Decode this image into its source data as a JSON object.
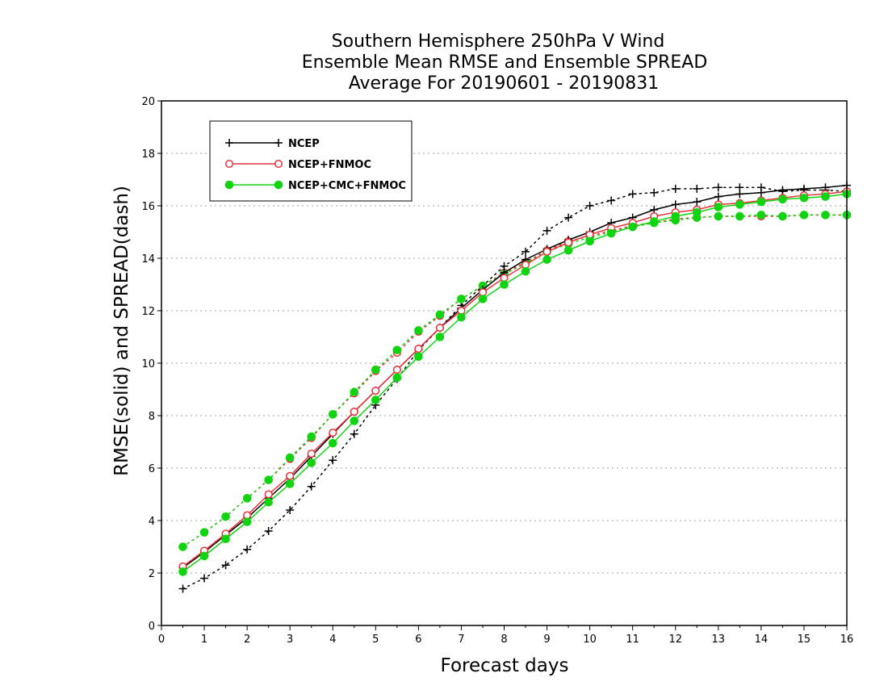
{
  "chart_data": {
    "type": "line",
    "title": [
      "Southern Hemisphere 250hPa V Wind",
      "Ensemble Mean RMSE and Ensemble SPREAD",
      "Average For 20190601 - 20190831"
    ],
    "xlabel": "Forecast days",
    "ylabel": "RMSE(solid) and SPREAD(dash)",
    "xlim": [
      0,
      16
    ],
    "ylim": [
      0,
      20
    ],
    "xticks": [
      0,
      1,
      2,
      3,
      4,
      5,
      6,
      7,
      8,
      9,
      10,
      11,
      12,
      13,
      14,
      15,
      16
    ],
    "yticks": [
      0,
      2,
      4,
      6,
      8,
      10,
      12,
      14,
      16,
      18,
      20
    ],
    "grid": true,
    "legend_position": "top-left",
    "x": [
      0.5,
      1,
      1.5,
      2,
      2.5,
      3,
      3.5,
      4,
      4.5,
      5,
      5.5,
      6,
      6.5,
      7,
      7.5,
      8,
      8.5,
      9,
      9.5,
      10,
      10.5,
      11,
      11.5,
      12,
      12.5,
      13,
      13.5,
      14,
      14.5,
      15,
      15.5,
      16
    ],
    "series": [
      {
        "name": "NCEP",
        "color": "#000000",
        "marker": "plus",
        "rmse": [
          2.2,
          2.8,
          3.45,
          4.1,
          4.85,
          5.6,
          6.45,
          7.3,
          8.15,
          8.95,
          9.75,
          10.55,
          11.35,
          12.1,
          12.8,
          13.45,
          13.95,
          14.35,
          14.7,
          15.0,
          15.35,
          15.55,
          15.85,
          16.05,
          16.15,
          16.35,
          16.45,
          16.5,
          16.6,
          16.65,
          16.7,
          16.78
        ],
        "spread": [
          1.4,
          1.8,
          2.3,
          2.9,
          3.6,
          4.4,
          5.3,
          6.3,
          7.3,
          8.4,
          9.4,
          10.5,
          11.35,
          12.2,
          12.95,
          13.7,
          14.25,
          15.05,
          15.55,
          16.0,
          16.2,
          16.45,
          16.5,
          16.65,
          16.65,
          16.7,
          16.7,
          16.7,
          16.55,
          16.6,
          16.6,
          16.55
        ]
      },
      {
        "name": "NCEP+FNMOC",
        "color": "#e8353f",
        "marker": "open-circle",
        "rmse": [
          2.25,
          2.85,
          3.5,
          4.2,
          5.0,
          5.7,
          6.55,
          7.35,
          8.15,
          8.95,
          9.75,
          10.55,
          11.35,
          12.0,
          12.7,
          13.25,
          13.75,
          14.25,
          14.6,
          14.9,
          15.15,
          15.35,
          15.6,
          15.75,
          15.85,
          16.05,
          16.1,
          16.2,
          16.3,
          16.4,
          16.45,
          16.55
        ],
        "spread": [
          3.0,
          3.55,
          4.15,
          4.85,
          5.55,
          6.35,
          7.15,
          8.05,
          8.85,
          9.7,
          10.4,
          11.2,
          11.8,
          12.45,
          12.95,
          13.45,
          13.85,
          14.3,
          14.65,
          14.85,
          15.05,
          15.25,
          15.35,
          15.5,
          15.55,
          15.6,
          15.6,
          15.6,
          15.6,
          15.65,
          15.65,
          15.65
        ]
      },
      {
        "name": "NCEP+CMC+FNMOC",
        "color": "#11d411",
        "marker": "filled-circle",
        "rmse": [
          2.05,
          2.65,
          3.3,
          3.95,
          4.7,
          5.4,
          6.2,
          6.95,
          7.8,
          8.6,
          9.45,
          10.25,
          11.0,
          11.75,
          12.45,
          13.0,
          13.5,
          13.95,
          14.3,
          14.65,
          14.95,
          15.2,
          15.4,
          15.6,
          15.75,
          15.95,
          16.05,
          16.15,
          16.25,
          16.3,
          16.35,
          16.45
        ],
        "spread": [
          3.0,
          3.55,
          4.15,
          4.85,
          5.55,
          6.4,
          7.2,
          8.05,
          8.9,
          9.75,
          10.5,
          11.25,
          11.85,
          12.45,
          12.95,
          13.4,
          13.8,
          14.25,
          14.55,
          14.8,
          15.0,
          15.2,
          15.35,
          15.45,
          15.55,
          15.6,
          15.6,
          15.65,
          15.6,
          15.65,
          15.65,
          15.65
        ]
      }
    ]
  }
}
